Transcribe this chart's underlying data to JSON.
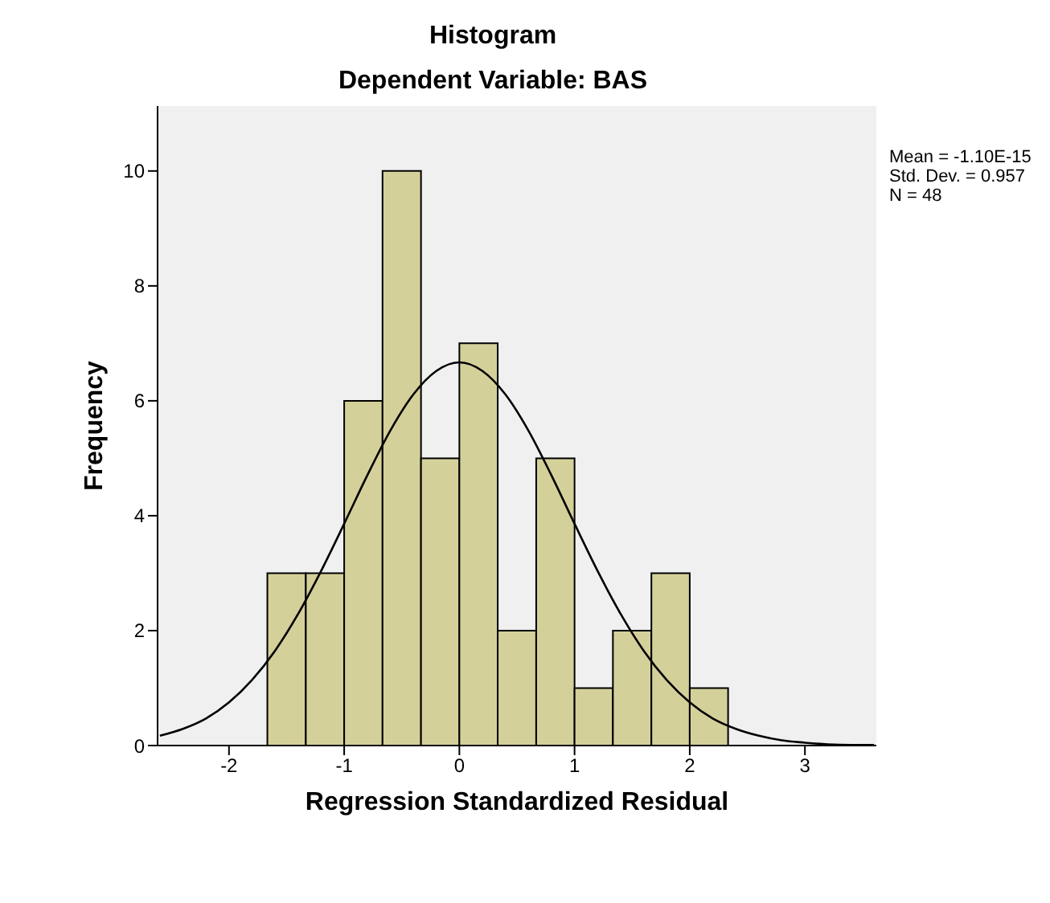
{
  "chart_data": {
    "type": "histogram",
    "title": "Histogram",
    "subtitle": "Dependent Variable: BAS",
    "xlabel": "Regression Standardized Residual",
    "ylabel": "Frequency",
    "bins": [
      -1.667,
      -1.333,
      -1,
      -0.667,
      -0.333,
      0,
      0.333,
      0.667,
      1,
      1.333,
      1.667,
      2,
      2.333
    ],
    "values": [
      3,
      3,
      6,
      10,
      5,
      7,
      2,
      5,
      1,
      2,
      3,
      1
    ],
    "color": "#d4d09a",
    "series": [
      {
        "type": "line",
        "color": "#000000",
        "x": [
          -2.6,
          -2.4,
          -2.2,
          -2,
          -1.8,
          -1.6,
          -1.4,
          -1.2,
          -1,
          -0.8,
          -0.6,
          -0.4,
          -0.2,
          0,
          0.2,
          0.4,
          0.6,
          0.8,
          1,
          1.2,
          1.4,
          1.6,
          1.8,
          2,
          2.2,
          2.4,
          2.6,
          2.8,
          3,
          3.2,
          3.4,
          3.6
        ],
        "values": [
          0.17,
          0.29,
          0.47,
          0.75,
          1.14,
          1.65,
          2.29,
          3.04,
          3.86,
          4.7,
          5.48,
          6.11,
          6.52,
          6.67,
          6.52,
          6.11,
          5.48,
          4.7,
          3.86,
          3.04,
          2.29,
          1.65,
          1.14,
          0.75,
          0.47,
          0.29,
          0.17,
          0.09,
          0.05,
          0.02,
          0.01,
          0.01
        ]
      }
    ],
    "xlim": [
      -2.62,
      3.62
    ],
    "xticks": [
      -2,
      -1,
      0,
      1,
      2,
      3
    ],
    "ylim": [
      0,
      11.13
    ],
    "yticks": [
      0,
      2,
      4,
      6,
      8,
      10
    ],
    "annotations": [
      "Mean = -1.10E-15",
      "Std. Dev. = 0.957",
      "N = 48"
    ]
  }
}
